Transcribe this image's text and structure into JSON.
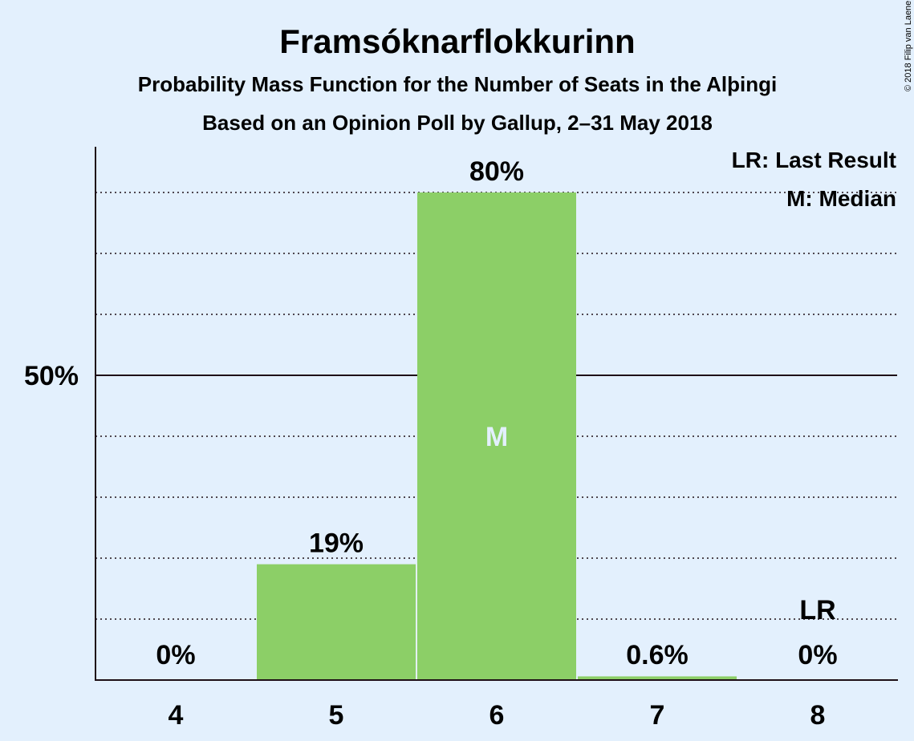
{
  "chart_data": {
    "type": "bar",
    "title": "Framsóknarflokkurinn",
    "subtitle": "Probability Mass Function for the Number of Seats in the Alþingi",
    "subtitle2": "Based on an Opinion Poll by Gallup, 2–31 May 2018",
    "categories": [
      "4",
      "5",
      "6",
      "7",
      "8"
    ],
    "values": [
      0,
      19,
      80,
      0.6,
      0
    ],
    "value_labels": [
      "0%",
      "19%",
      "80%",
      "0.6%",
      "0%"
    ],
    "ylim": [
      0,
      88
    ],
    "y_tick_value": 50,
    "y_tick_label": "50%",
    "dotted_gridlines": [
      10,
      20,
      30,
      40,
      60,
      70,
      80
    ],
    "median_category": "6",
    "median_marker": "M",
    "last_result_category": "8",
    "last_result_marker": "LR",
    "legend": [
      "LR: Last Result",
      "M: Median"
    ],
    "copyright": "© 2018 Filip van Laenen",
    "colors": {
      "bar": "#8ccf67",
      "background": "#e3f0fd",
      "text": "#1e0f17",
      "median_text": "#e3f0fd"
    }
  }
}
